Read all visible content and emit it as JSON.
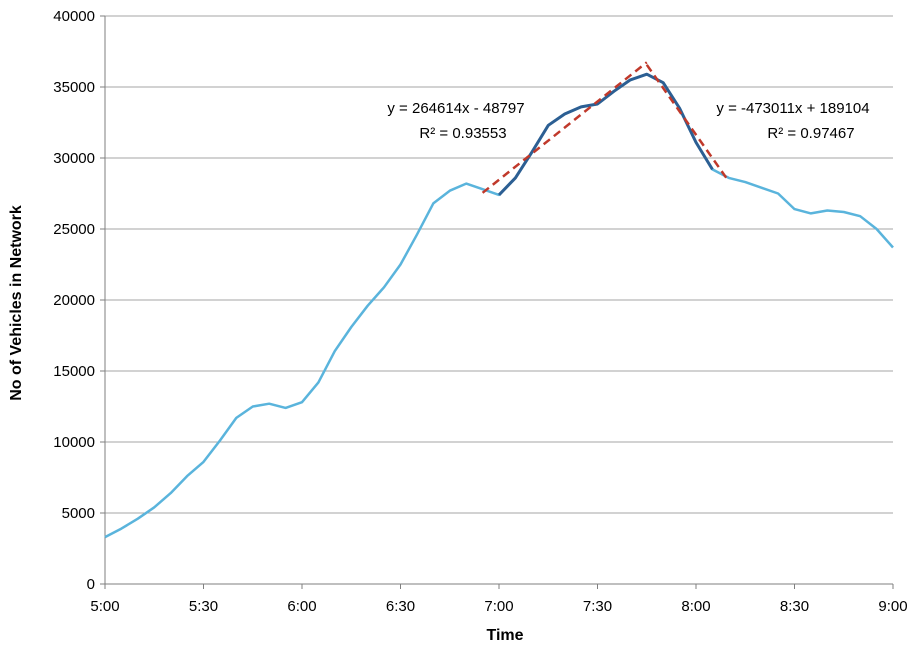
{
  "chart_data": {
    "type": "line",
    "xlabel": "Time",
    "ylabel": "No of Vehicles in Network",
    "x_tick_labels": [
      "5:00",
      "5:30",
      "6:00",
      "6:30",
      "7:00",
      "7:30",
      "8:00",
      "8:30",
      "9:00"
    ],
    "y_tick_labels": [
      "0",
      "5000",
      "10000",
      "15000",
      "20000",
      "25000",
      "30000",
      "35000",
      "40000"
    ],
    "xlim_minutes": [
      0,
      240
    ],
    "ylim": [
      0,
      40000
    ],
    "grid": "horizontal",
    "colors": {
      "main": "#5ab4dc",
      "highlight": "#2c5f93",
      "trend": "#c0392b"
    },
    "series": [
      {
        "style": "solid",
        "x_minutes": [
          0,
          5,
          10,
          15,
          20,
          25,
          30,
          35,
          40,
          45,
          50,
          55,
          60,
          65,
          70,
          75,
          80,
          85,
          90,
          95,
          100,
          105,
          110,
          115,
          120,
          125,
          130,
          135,
          140,
          145,
          150,
          155,
          160,
          165,
          170,
          175,
          180,
          185,
          190,
          195,
          200,
          205,
          210,
          215,
          220,
          225,
          230,
          235,
          240
        ],
        "values": [
          3300,
          3900,
          4600,
          5400,
          6400,
          7600,
          8600,
          10100,
          11700,
          12500,
          12700,
          12400,
          12800,
          14200,
          16400,
          18100,
          19600,
          20900,
          22500,
          24600,
          26800,
          27700,
          28200,
          27800,
          27400,
          28600,
          30400,
          32300,
          33100,
          33600,
          33800,
          34700,
          35500,
          35900,
          35300,
          33500,
          31100,
          29200,
          28600,
          28300,
          27900,
          27500,
          26400,
          26100,
          26300,
          26200,
          25900,
          25000,
          23700
        ]
      },
      {
        "style": "solid-bold",
        "x_minutes": [
          120,
          125,
          130,
          135,
          140,
          145,
          150,
          155,
          160,
          165,
          170,
          175,
          180,
          185
        ],
        "values": [
          27400,
          28600,
          30400,
          32300,
          33100,
          33600,
          33800,
          34700,
          35500,
          35900,
          35300,
          33500,
          31100,
          29200
        ]
      }
    ],
    "trendlines": [
      {
        "style": "dashed",
        "x_minutes": [
          115,
          165
        ],
        "values": [
          27550,
          36740
        ],
        "equation": "y = 264614x - 48797",
        "r2": "R² = 0.93553"
      },
      {
        "style": "dashed",
        "x_minutes": [
          165,
          190
        ],
        "values": [
          36560,
          28350
        ],
        "equation": "y = -473011x + 189104",
        "r2": "R² = 0.97467"
      }
    ]
  }
}
